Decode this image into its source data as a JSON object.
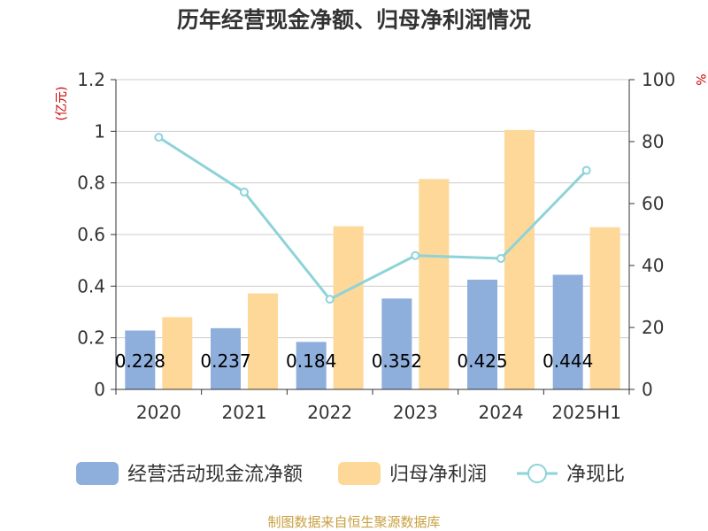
{
  "chart_data": {
    "type": "bar",
    "title": "历年经营现金净额、归母净利润情况",
    "y_left_unit": "(亿元)",
    "y_right_unit": "%",
    "ylim_left": [
      0,
      1.2
    ],
    "ylim_right": [
      0,
      100
    ],
    "left_ticks": [
      "0",
      "0.2",
      "0.4",
      "0.6",
      "0.8",
      "1",
      "1.2"
    ],
    "right_ticks": [
      "0",
      "20",
      "40",
      "60",
      "80",
      "100"
    ],
    "categories": [
      "2020",
      "2021",
      "2022",
      "2023",
      "2024",
      "2025H1"
    ],
    "series": [
      {
        "name": "经营活动现金流净额",
        "type": "bar",
        "axis": "left",
        "color": "#8eaedb",
        "values": [
          0.228,
          0.237,
          0.184,
          0.352,
          0.425,
          0.444
        ],
        "labels": [
          "0.228",
          "0.237",
          "0.184",
          "0.352",
          "0.425",
          "0.444"
        ]
      },
      {
        "name": "归母净利润",
        "type": "bar",
        "axis": "left",
        "color": "#fdd898",
        "values": [
          0.28,
          0.372,
          0.632,
          0.815,
          1.005,
          0.628
        ]
      },
      {
        "name": "净现比",
        "type": "line",
        "axis": "right",
        "color": "#8dd3d8",
        "values": [
          81.4,
          63.7,
          29.1,
          43.2,
          42.3,
          70.7
        ]
      }
    ],
    "grid": true,
    "legend_position": "bottom"
  },
  "footer": {
    "source": "制图数据来自恒生聚源数据库"
  },
  "colors": {
    "title": "#333333",
    "axis_text": "#333333",
    "unit": "#cc0000",
    "grid": "#cccccc",
    "source": "#c8a040"
  }
}
